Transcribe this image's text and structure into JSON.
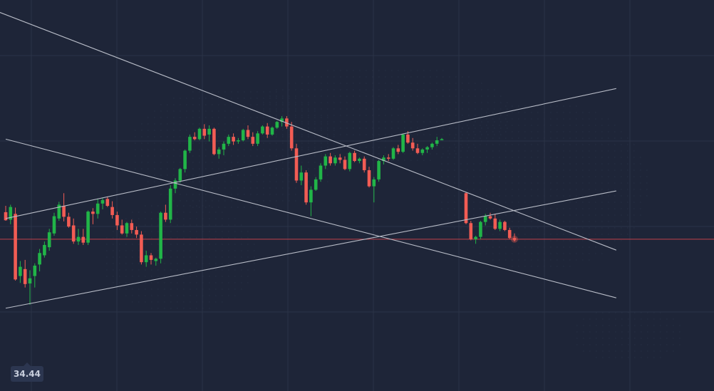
{
  "chart_data": {
    "type": "candlestick",
    "title": "",
    "xlabel": "",
    "ylabel": "",
    "ylim": [
      33.0,
      39.8
    ],
    "grid": true,
    "colors": {
      "up": "#21b548",
      "down": "#f25c54",
      "background": "#1e2538",
      "grid": "#2b3347",
      "trendline": "#b8bcc7",
      "price_line": "#c2404a"
    },
    "current_price": 35.64,
    "min_marker": {
      "label": "34.44",
      "value": 34.44
    },
    "trendlines": [
      {
        "from": [
          -2,
          39.61
        ],
        "to": [
          126,
          35.45
        ]
      },
      {
        "from": [
          0,
          36.0
        ],
        "to": [
          126,
          38.26
        ]
      },
      {
        "from": [
          0,
          37.38
        ],
        "to": [
          126,
          34.62
        ]
      },
      {
        "from": [
          0,
          34.44
        ],
        "to": [
          126,
          36.48
        ]
      }
    ],
    "candles": [
      {
        "o": 36.11,
        "h": 36.22,
        "l": 35.96,
        "c": 35.97
      },
      {
        "o": 35.98,
        "h": 36.24,
        "l": 35.9,
        "c": 36.2
      },
      {
        "o": 36.08,
        "h": 36.19,
        "l": 34.92,
        "c": 34.94
      },
      {
        "o": 35.0,
        "h": 35.26,
        "l": 34.88,
        "c": 35.16
      },
      {
        "o": 35.12,
        "h": 35.28,
        "l": 34.8,
        "c": 34.86
      },
      {
        "o": 34.87,
        "h": 35.1,
        "l": 34.5,
        "c": 34.96
      },
      {
        "o": 35.0,
        "h": 35.22,
        "l": 34.8,
        "c": 35.18
      },
      {
        "o": 35.2,
        "h": 35.47,
        "l": 35.08,
        "c": 35.4
      },
      {
        "o": 35.36,
        "h": 35.6,
        "l": 35.32,
        "c": 35.54
      },
      {
        "o": 35.5,
        "h": 35.82,
        "l": 35.44,
        "c": 35.76
      },
      {
        "o": 35.74,
        "h": 36.1,
        "l": 35.7,
        "c": 36.04
      },
      {
        "o": 36.0,
        "h": 36.29,
        "l": 35.96,
        "c": 36.24
      },
      {
        "o": 36.22,
        "h": 36.44,
        "l": 35.95,
        "c": 36.03
      },
      {
        "o": 36.03,
        "h": 36.1,
        "l": 35.84,
        "c": 35.86
      },
      {
        "o": 35.88,
        "h": 36.0,
        "l": 35.56,
        "c": 35.6
      },
      {
        "o": 35.6,
        "h": 35.82,
        "l": 35.54,
        "c": 35.68
      },
      {
        "o": 35.68,
        "h": 35.82,
        "l": 35.54,
        "c": 35.58
      },
      {
        "o": 35.58,
        "h": 36.14,
        "l": 35.54,
        "c": 36.12
      },
      {
        "o": 36.12,
        "h": 36.18,
        "l": 35.9,
        "c": 36.08
      },
      {
        "o": 36.08,
        "h": 36.34,
        "l": 36.0,
        "c": 36.26
      },
      {
        "o": 36.26,
        "h": 36.36,
        "l": 36.16,
        "c": 36.32
      },
      {
        "o": 36.34,
        "h": 36.38,
        "l": 36.2,
        "c": 36.22
      },
      {
        "o": 36.2,
        "h": 36.3,
        "l": 36.0,
        "c": 36.06
      },
      {
        "o": 36.06,
        "h": 36.12,
        "l": 35.8,
        "c": 35.88
      },
      {
        "o": 35.88,
        "h": 35.98,
        "l": 35.72,
        "c": 35.74
      },
      {
        "o": 35.74,
        "h": 35.94,
        "l": 35.68,
        "c": 35.92
      },
      {
        "o": 35.92,
        "h": 35.98,
        "l": 35.74,
        "c": 35.8
      },
      {
        "o": 35.8,
        "h": 35.86,
        "l": 35.66,
        "c": 35.72
      },
      {
        "o": 35.72,
        "h": 35.78,
        "l": 35.2,
        "c": 35.24
      },
      {
        "o": 35.24,
        "h": 35.44,
        "l": 35.16,
        "c": 35.36
      },
      {
        "o": 35.36,
        "h": 35.4,
        "l": 35.2,
        "c": 35.28
      },
      {
        "o": 35.26,
        "h": 35.32,
        "l": 35.18,
        "c": 35.3
      },
      {
        "o": 35.3,
        "h": 36.12,
        "l": 35.22,
        "c": 36.1
      },
      {
        "o": 36.1,
        "h": 36.24,
        "l": 35.94,
        "c": 35.98
      },
      {
        "o": 35.98,
        "h": 36.58,
        "l": 35.92,
        "c": 36.52
      },
      {
        "o": 36.52,
        "h": 36.7,
        "l": 36.44,
        "c": 36.66
      },
      {
        "o": 36.66,
        "h": 36.88,
        "l": 36.62,
        "c": 36.86
      },
      {
        "o": 36.86,
        "h": 37.2,
        "l": 36.8,
        "c": 37.18
      },
      {
        "o": 37.18,
        "h": 37.46,
        "l": 37.14,
        "c": 37.42
      },
      {
        "o": 37.42,
        "h": 37.5,
        "l": 37.36,
        "c": 37.38
      },
      {
        "o": 37.38,
        "h": 37.58,
        "l": 37.36,
        "c": 37.56
      },
      {
        "o": 37.56,
        "h": 37.64,
        "l": 37.38,
        "c": 37.44
      },
      {
        "o": 37.46,
        "h": 37.62,
        "l": 37.34,
        "c": 37.56
      },
      {
        "o": 37.56,
        "h": 37.58,
        "l": 37.1,
        "c": 37.12
      },
      {
        "o": 37.12,
        "h": 37.24,
        "l": 37.04,
        "c": 37.2
      },
      {
        "o": 37.2,
        "h": 37.34,
        "l": 37.1,
        "c": 37.3
      },
      {
        "o": 37.3,
        "h": 37.46,
        "l": 37.26,
        "c": 37.42
      },
      {
        "o": 37.42,
        "h": 37.48,
        "l": 37.28,
        "c": 37.34
      },
      {
        "o": 37.34,
        "h": 37.4,
        "l": 37.3,
        "c": 37.36
      },
      {
        "o": 37.36,
        "h": 37.56,
        "l": 37.34,
        "c": 37.54
      },
      {
        "o": 37.54,
        "h": 37.62,
        "l": 37.38,
        "c": 37.42
      },
      {
        "o": 37.42,
        "h": 37.5,
        "l": 37.26,
        "c": 37.3
      },
      {
        "o": 37.3,
        "h": 37.52,
        "l": 37.26,
        "c": 37.48
      },
      {
        "o": 37.48,
        "h": 37.62,
        "l": 37.46,
        "c": 37.6
      },
      {
        "o": 37.6,
        "h": 37.66,
        "l": 37.4,
        "c": 37.46
      },
      {
        "o": 37.46,
        "h": 37.6,
        "l": 37.44,
        "c": 37.58
      },
      {
        "o": 37.58,
        "h": 37.7,
        "l": 37.56,
        "c": 37.68
      },
      {
        "o": 37.68,
        "h": 37.78,
        "l": 37.6,
        "c": 37.74
      },
      {
        "o": 37.74,
        "h": 37.78,
        "l": 37.56,
        "c": 37.6
      },
      {
        "o": 37.6,
        "h": 37.68,
        "l": 37.18,
        "c": 37.22
      },
      {
        "o": 37.22,
        "h": 37.3,
        "l": 36.62,
        "c": 36.66
      },
      {
        "o": 36.66,
        "h": 36.92,
        "l": 36.58,
        "c": 36.8
      },
      {
        "o": 36.8,
        "h": 36.84,
        "l": 36.24,
        "c": 36.28
      },
      {
        "o": 36.28,
        "h": 36.56,
        "l": 36.04,
        "c": 36.5
      },
      {
        "o": 36.5,
        "h": 36.72,
        "l": 36.48,
        "c": 36.68
      },
      {
        "o": 36.68,
        "h": 36.96,
        "l": 36.64,
        "c": 36.92
      },
      {
        "o": 36.92,
        "h": 37.12,
        "l": 36.86,
        "c": 37.08
      },
      {
        "o": 37.08,
        "h": 37.14,
        "l": 36.92,
        "c": 36.96
      },
      {
        "o": 36.96,
        "h": 37.1,
        "l": 36.92,
        "c": 37.06
      },
      {
        "o": 37.06,
        "h": 37.12,
        "l": 36.96,
        "c": 37.02
      },
      {
        "o": 37.02,
        "h": 37.08,
        "l": 36.84,
        "c": 36.86
      },
      {
        "o": 36.86,
        "h": 37.16,
        "l": 36.82,
        "c": 37.14
      },
      {
        "o": 37.14,
        "h": 37.18,
        "l": 36.98,
        "c": 37.0
      },
      {
        "o": 37.0,
        "h": 37.06,
        "l": 36.96,
        "c": 37.04
      },
      {
        "o": 37.04,
        "h": 37.08,
        "l": 36.8,
        "c": 36.84
      },
      {
        "o": 36.84,
        "h": 36.9,
        "l": 36.54,
        "c": 36.56
      },
      {
        "o": 36.56,
        "h": 36.72,
        "l": 36.28,
        "c": 36.68
      },
      {
        "o": 36.68,
        "h": 37.02,
        "l": 36.64,
        "c": 37.0
      },
      {
        "o": 37.0,
        "h": 37.1,
        "l": 36.94,
        "c": 37.06
      },
      {
        "o": 37.06,
        "h": 37.12,
        "l": 37.0,
        "c": 37.04
      },
      {
        "o": 37.04,
        "h": 37.24,
        "l": 37.02,
        "c": 37.22
      },
      {
        "o": 37.22,
        "h": 37.28,
        "l": 37.12,
        "c": 37.16
      },
      {
        "o": 37.16,
        "h": 37.48,
        "l": 37.14,
        "c": 37.46
      },
      {
        "o": 37.46,
        "h": 37.52,
        "l": 37.3,
        "c": 37.32
      },
      {
        "o": 37.32,
        "h": 37.4,
        "l": 37.18,
        "c": 37.22
      },
      {
        "o": 37.22,
        "h": 37.3,
        "l": 37.12,
        "c": 37.14
      },
      {
        "o": 37.14,
        "h": 37.22,
        "l": 37.1,
        "c": 37.2
      },
      {
        "o": 37.2,
        "h": 37.26,
        "l": 37.14,
        "c": 37.24
      },
      {
        "o": 37.24,
        "h": 37.32,
        "l": 37.2,
        "c": 37.3
      },
      {
        "o": 37.3,
        "h": 37.42,
        "l": 37.26,
        "c": 37.36
      },
      {
        "o": 37.38,
        "h": 37.4,
        "l": 37.36,
        "c": 37.38
      },
      {
        "o": 36.44,
        "h": 36.46,
        "l": 35.9,
        "c": 35.92
      },
      {
        "o": 35.92,
        "h": 35.96,
        "l": 35.62,
        "c": 35.64
      },
      {
        "o": 35.64,
        "h": 35.7,
        "l": 35.56,
        "c": 35.68
      },
      {
        "o": 35.68,
        "h": 35.96,
        "l": 35.64,
        "c": 35.94
      },
      {
        "o": 35.94,
        "h": 36.08,
        "l": 35.88,
        "c": 36.04
      },
      {
        "o": 36.04,
        "h": 36.1,
        "l": 35.98,
        "c": 36.0
      },
      {
        "o": 36.0,
        "h": 36.08,
        "l": 35.8,
        "c": 35.82
      },
      {
        "o": 35.82,
        "h": 35.98,
        "l": 35.78,
        "c": 35.94
      },
      {
        "o": 35.94,
        "h": 35.96,
        "l": 35.78,
        "c": 35.8
      },
      {
        "o": 35.8,
        "h": 35.84,
        "l": 35.64,
        "c": 35.66
      },
      {
        "o": 35.66,
        "h": 35.74,
        "l": 35.6,
        "c": 35.64
      }
    ]
  }
}
